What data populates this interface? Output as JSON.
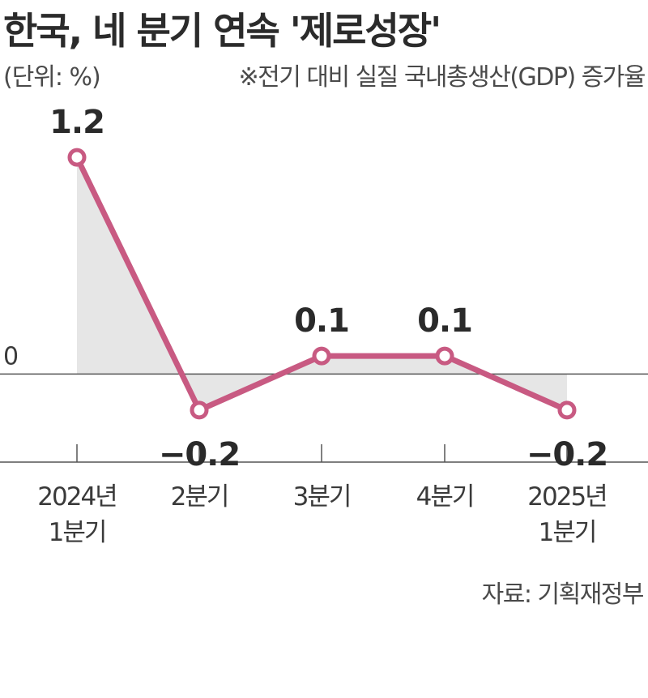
{
  "header": {
    "title": "한국, 네 분기 연속 '제로성장'",
    "unit": "(단위: %)",
    "note": "※전기 대비 실질 국내총생산(GDP) 증가율"
  },
  "footer": {
    "source": "자료: 기획재정부"
  },
  "colors": {
    "line": "#c85a82",
    "fill": "#e6e6e6",
    "axis": "#555555"
  },
  "chart_data": {
    "type": "line",
    "title": "한국, 네 분기 연속 '제로성장'",
    "xlabel": "",
    "ylabel": "(단위: %)",
    "categories": [
      [
        "2024년",
        "1분기"
      ],
      [
        "2분기"
      ],
      [
        "3분기"
      ],
      [
        "4분기"
      ],
      [
        "2025년",
        "1분기"
      ]
    ],
    "values": [
      1.2,
      -0.2,
      0.1,
      0.1,
      -0.2
    ],
    "value_labels": [
      "1.2",
      "−0.2",
      "0.1",
      "0.1",
      "−0.2"
    ],
    "zero_label": "0",
    "ylim": [
      -0.6,
      1.6
    ],
    "grid": false,
    "legend": "none"
  }
}
